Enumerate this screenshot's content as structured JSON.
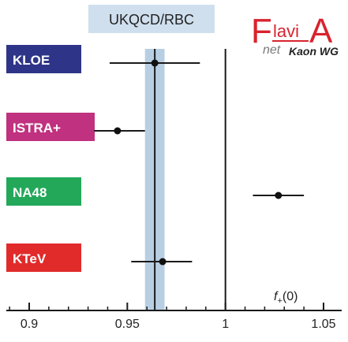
{
  "chart_data": {
    "type": "scatter",
    "title": "",
    "xlabel": "f+(0)",
    "xlabel_main": "f",
    "xlabel_sub": "+",
    "xlabel_arg": "(0)",
    "ylabel": "",
    "xlim": [
      0.885,
      1.057
    ],
    "ticks": [
      0.9,
      0.95,
      1,
      1.05
    ],
    "tick_labels": [
      "0.9",
      "0.95",
      "1",
      "1.05"
    ],
    "grid": false,
    "reference": {
      "label": "UKQCD/RBC",
      "value": 0.964,
      "band": [
        0.959,
        0.969
      ],
      "band_color": "#b8cfe3"
    },
    "unity_line": 1,
    "experiments": [
      {
        "name": "KLOE",
        "value": 0.964,
        "xerr_low": 0.963,
        "err": [
          0.941,
          0.987
        ],
        "color": "#2e3588"
      },
      {
        "name": "ISTRA+",
        "value": 0.945,
        "err": [
          0.933,
          0.959
        ],
        "color": "#c0317f"
      },
      {
        "name": "NA48",
        "value": 1.027,
        "err": [
          1.014,
          1.04
        ],
        "color": "#23a85a"
      },
      {
        "name": "KTeV",
        "value": 0.968,
        "err": [
          0.952,
          0.983
        ],
        "color": "#e12b2b"
      }
    ],
    "logo": {
      "F": "F",
      "lavi": "lavi",
      "A": "A",
      "net": "net",
      "wg": "Kaon WG",
      "color": "#d9232e"
    }
  }
}
